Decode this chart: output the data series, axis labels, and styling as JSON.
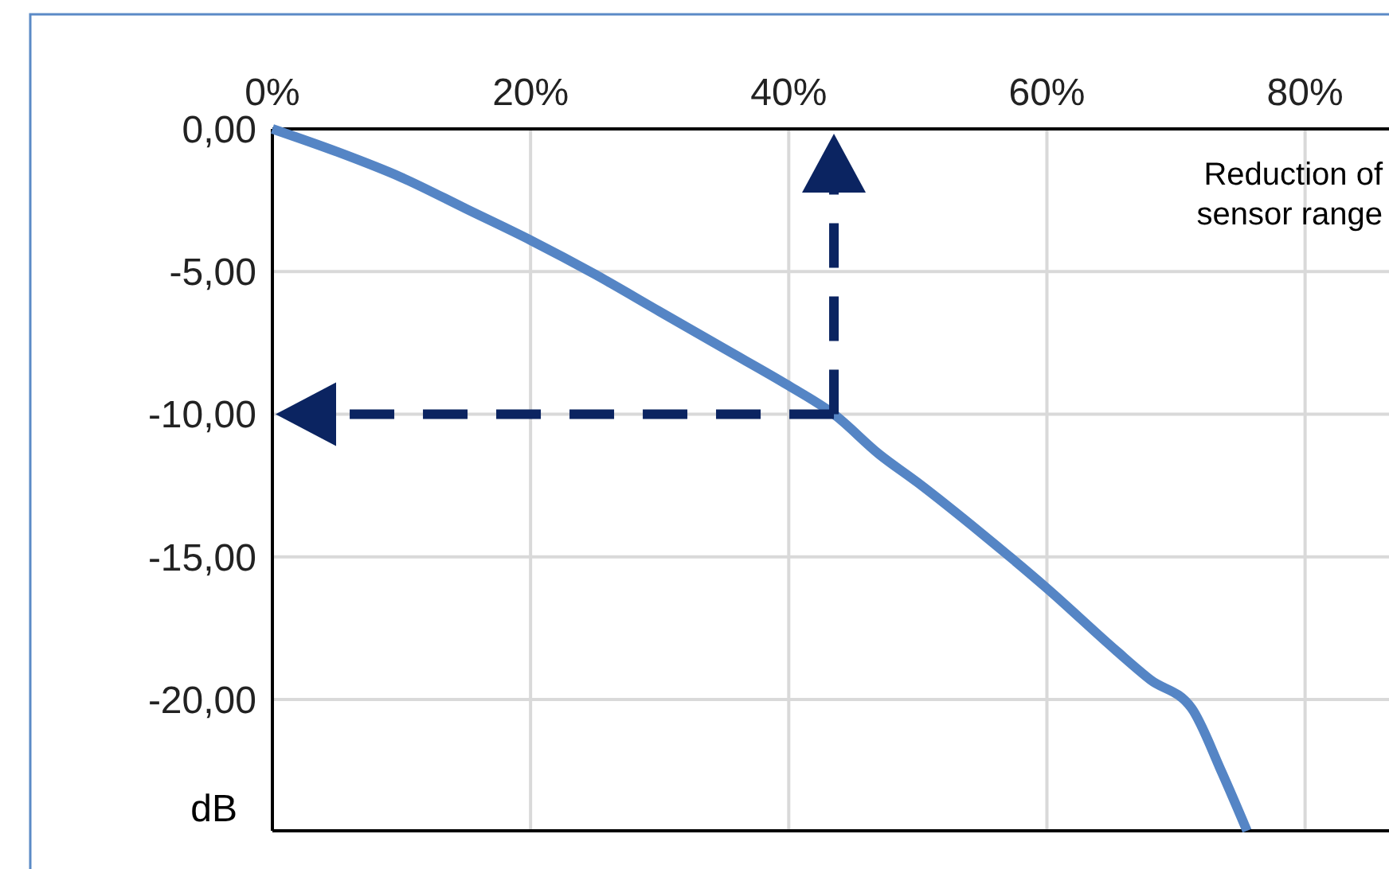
{
  "chart_data": {
    "type": "line",
    "ylabel": "dB",
    "annotations": [
      "Reduction of sensor range"
    ],
    "ref_lines": [
      {
        "axis": "x",
        "value": 43.5,
        "color": "#0b2461",
        "line_style": "dashed"
      },
      {
        "axis": "y",
        "value": -10,
        "color": "#0b2461",
        "line_style": "dashed"
      }
    ],
    "x": [
      0,
      5,
      10,
      15,
      20,
      25,
      30,
      35,
      40,
      43.5,
      47,
      50,
      55,
      60,
      65.4,
      68,
      71.2,
      73.5,
      75.5
    ],
    "series": [
      {
        "color": "#5585c5",
        "values": [
          0,
          -0.8,
          -1.7,
          -2.8,
          -3.9,
          -5.1,
          -6.4,
          -7.7,
          -9.0,
          -10,
          -11.4,
          -12.4,
          -14.2,
          -16.1,
          -18.3,
          -19.3,
          -20.3,
          -22.5,
          -24.6
        ]
      }
    ],
    "xlim": [
      0,
      86.5
    ],
    "ylim": [
      -24.6,
      0
    ],
    "xticks": [
      {
        "value": 0,
        "label": "0%"
      },
      {
        "value": 20,
        "label": "20%"
      },
      {
        "value": 40,
        "label": "40%"
      },
      {
        "value": 60,
        "label": "60%"
      },
      {
        "value": 80,
        "label": "80%"
      }
    ],
    "yticks": [
      {
        "value": 0,
        "label": "0,00"
      },
      {
        "value": -5,
        "label": "-5,00"
      },
      {
        "value": -10,
        "label": "-10,00"
      },
      {
        "value": -15,
        "label": "-15,00"
      },
      {
        "value": -20,
        "label": "-20,00"
      }
    ],
    "grid": true,
    "marker": "none",
    "line_style": "solid"
  }
}
